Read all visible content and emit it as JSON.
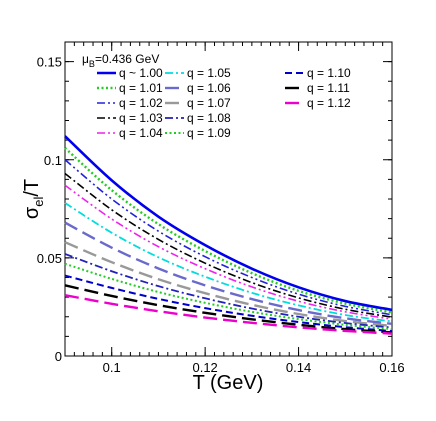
{
  "chart_data": {
    "type": "line",
    "title": "",
    "xlabel": "T (GeV)",
    "ylabel_main": "σ",
    "ylabel_sub": "el",
    "ylabel_tail": "/T",
    "annotation_main": "μ",
    "annotation_sub": "B",
    "annotation_tail": "=0.436 GeV",
    "xlim": [
      0.09,
      0.16
    ],
    "ylim": [
      0,
      0.16
    ],
    "xticks": [
      0.1,
      0.12,
      0.14,
      0.16
    ],
    "xtick_labels": [
      "0.1",
      "0.12",
      "0.14",
      "0.16"
    ],
    "yticks": [
      0,
      0.05,
      0.1,
      0.15
    ],
    "ytick_labels": [
      "0",
      "0.05",
      "0.1",
      "0.15"
    ],
    "grid": false,
    "legend_position": "top",
    "x": [
      0.09,
      0.1,
      0.11,
      0.12,
      0.13,
      0.14,
      0.15,
      0.16
    ],
    "series": [
      {
        "name": "q ~ 1.00",
        "color": "#0000ee",
        "dash": "solid",
        "width": 2.6,
        "values": [
          0.112,
          0.0895,
          0.071,
          0.0565,
          0.0445,
          0.035,
          0.028,
          0.0235
        ]
      },
      {
        "name": "q = 1.01",
        "color": "#22cc22",
        "dash": "dot",
        "width": 2.4,
        "values": [
          0.106,
          0.0845,
          0.0672,
          0.0535,
          0.0422,
          0.0332,
          0.0267,
          0.0222
        ]
      },
      {
        "name": "q = 1.02",
        "color": "#2222dd",
        "dash": "dashdotdot",
        "width": 1.6,
        "values": [
          0.1,
          0.08,
          0.0636,
          0.0506,
          0.04,
          0.0315,
          0.0253,
          0.021
        ]
      },
      {
        "name": "q = 1.03",
        "color": "#000000",
        "dash": "dashdot",
        "width": 1.6,
        "values": [
          0.093,
          0.0745,
          0.0594,
          0.0473,
          0.0374,
          0.0296,
          0.0238,
          0.0198
        ]
      },
      {
        "name": "q = 1.04",
        "color": "#ee22ee",
        "dash": "dashdotdot",
        "width": 1.6,
        "values": [
          0.087,
          0.0698,
          0.0557,
          0.0445,
          0.0352,
          0.0279,
          0.0225,
          0.0188
        ]
      },
      {
        "name": "q = 1.05",
        "color": "#00dddd",
        "dash": "dashdot",
        "width": 1.8,
        "values": [
          0.078,
          0.0628,
          0.0503,
          0.0404,
          0.0322,
          0.0258,
          0.0209,
          0.0176
        ]
      },
      {
        "name": "q = 1.06",
        "color": "#6a6acc",
        "dash": "longdash",
        "width": 2.4,
        "values": [
          0.068,
          0.0552,
          0.0446,
          0.036,
          0.029,
          0.0234,
          0.0192,
          0.0164
        ]
      },
      {
        "name": "q = 1.07",
        "color": "#999999",
        "dash": "longdash",
        "width": 2.4,
        "values": [
          0.058,
          0.0478,
          0.0391,
          0.032,
          0.0261,
          0.0214,
          0.0178,
          0.0153
        ]
      },
      {
        "name": "q = 1.08",
        "color": "#2222bb",
        "dash": "dashdot",
        "width": 1.8,
        "values": [
          0.052,
          0.0432,
          0.0356,
          0.0294,
          0.0242,
          0.02,
          0.0168,
          0.0145
        ]
      },
      {
        "name": "q = 1.09",
        "color": "#22cc22",
        "dash": "dot",
        "width": 2.0,
        "values": [
          0.047,
          0.0393,
          0.0326,
          0.0271,
          0.0225,
          0.0188,
          0.0159,
          0.0137
        ]
      },
      {
        "name": "q = 1.10",
        "color": "#0000cc",
        "dash": "dash",
        "width": 2.0,
        "values": [
          0.041,
          0.0347,
          0.0291,
          0.0244,
          0.0205,
          0.0173,
          0.0147,
          0.0127
        ]
      },
      {
        "name": "q = 1.11",
        "color": "#000000",
        "dash": "longdash",
        "width": 2.4,
        "values": [
          0.036,
          0.0306,
          0.0259,
          0.022,
          0.0187,
          0.0159,
          0.0137,
          0.012
        ]
      },
      {
        "name": "q = 1.12",
        "color": "#ee00cc",
        "dash": "longdash",
        "width": 2.4,
        "values": [
          0.031,
          0.0266,
          0.0228,
          0.0196,
          0.0169,
          0.0146,
          0.0128,
          0.0114
        ]
      }
    ]
  }
}
